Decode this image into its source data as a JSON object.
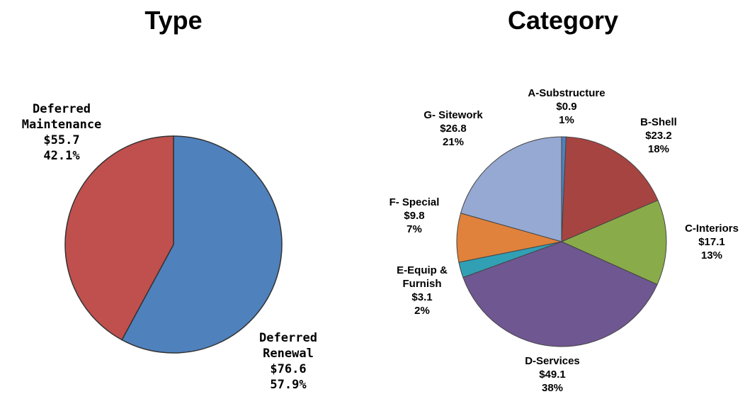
{
  "chart_data": [
    {
      "type": "pie",
      "title": "Type",
      "categories": [
        "Deferred Renewal",
        "Deferred Maintenance"
      ],
      "values": [
        76.6,
        55.7
      ],
      "value_labels": [
        "$76.6",
        "$55.7"
      ],
      "percentages": [
        57.9,
        42.1
      ],
      "percentage_labels": [
        "57.9%",
        "42.1%"
      ],
      "colors": [
        "#4f81bd",
        "#c0504d"
      ]
    },
    {
      "type": "pie",
      "title": "Category",
      "categories": [
        "A-Substructure",
        "B-Shell",
        "C-Interiors",
        "D-Services",
        "E-Equip & Furnish",
        "F- Special",
        "G- Sitework"
      ],
      "values": [
        0.9,
        23.2,
        17.1,
        49.1,
        3.1,
        9.8,
        26.8
      ],
      "value_labels": [
        "$0.9",
        "$23.2",
        "$17.1",
        "$49.1",
        "$3.1",
        "$9.8",
        "$26.8"
      ],
      "percentages": [
        1,
        18,
        13,
        38,
        2,
        7,
        21
      ],
      "percentage_labels": [
        "1%",
        "18%",
        "13%",
        "38%",
        "2%",
        "7%",
        "21%"
      ],
      "colors": [
        "#4f81bd",
        "#a64442",
        "#8aab4a",
        "#6f5791",
        "#31a0b5",
        "#e0823c",
        "#95a9d3"
      ]
    }
  ]
}
